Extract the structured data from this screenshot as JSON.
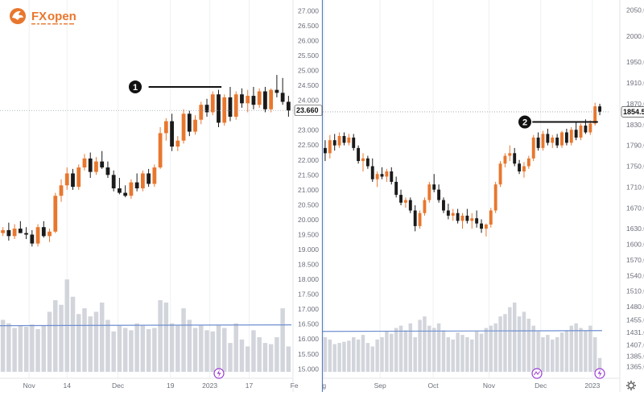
{
  "brand": {
    "name": "FXopen",
    "name_part1": "FX",
    "name_part2": "open",
    "icon": "fxopen-dragon-logo-icon"
  },
  "colors": {
    "up": "#e8772e",
    "down": "#1a1a1a",
    "volume": "#d3d5dc",
    "volume_ma": "#6f8fd0",
    "grid": "#eef0f3",
    "axis_text": "#6b6f7a",
    "separator": "#5b7bbf",
    "marker": "#111111"
  },
  "chart_data": [
    {
      "type": "candlestick",
      "title": "",
      "x_ticks": [
        "Nov",
        "14",
        "Dec",
        "19",
        "2023",
        "17",
        "Fe"
      ],
      "y_axis": {
        "ticks": [
          "27.000",
          "26.500",
          "26.000",
          "25.500",
          "25.000",
          "24.500",
          "24.000",
          "23.500",
          "23.000",
          "22.500",
          "22.000",
          "21.500",
          "21.000",
          "20.500",
          "20.000",
          "19.500",
          "19.000",
          "18.500",
          "18.000",
          "17.500",
          "17.000",
          "16.500",
          "16.000",
          "15.500",
          "15.000"
        ],
        "range": [
          14.9,
          27.2
        ]
      },
      "last_price_label": "23.660",
      "last_price": 23.66,
      "annotation": {
        "label": "1",
        "level": 24.45,
        "type": "horizontal-resistance-line"
      },
      "candles": [
        {
          "o": 19.55,
          "h": 19.75,
          "l": 19.45,
          "c": 19.65
        },
        {
          "o": 19.65,
          "h": 19.9,
          "l": 19.3,
          "c": 19.45
        },
        {
          "o": 19.45,
          "h": 19.85,
          "l": 19.35,
          "c": 19.7
        },
        {
          "o": 19.7,
          "h": 19.95,
          "l": 19.55,
          "c": 19.55
        },
        {
          "o": 19.55,
          "h": 19.75,
          "l": 19.35,
          "c": 19.5
        },
        {
          "o": 19.5,
          "h": 19.65,
          "l": 19.1,
          "c": 19.2
        },
        {
          "o": 19.2,
          "h": 19.85,
          "l": 19.1,
          "c": 19.75
        },
        {
          "o": 19.75,
          "h": 19.95,
          "l": 19.4,
          "c": 19.45
        },
        {
          "o": 19.45,
          "h": 19.7,
          "l": 19.25,
          "c": 19.6
        },
        {
          "o": 19.6,
          "h": 20.9,
          "l": 19.55,
          "c": 20.8
        },
        {
          "o": 20.8,
          "h": 21.35,
          "l": 20.6,
          "c": 21.15
        },
        {
          "o": 21.15,
          "h": 21.75,
          "l": 21.0,
          "c": 21.55
        },
        {
          "o": 21.55,
          "h": 21.7,
          "l": 21.0,
          "c": 21.1
        },
        {
          "o": 21.1,
          "h": 21.85,
          "l": 21.0,
          "c": 21.75
        },
        {
          "o": 21.75,
          "h": 22.2,
          "l": 21.65,
          "c": 22.05
        },
        {
          "o": 22.05,
          "h": 22.25,
          "l": 21.4,
          "c": 21.6
        },
        {
          "o": 21.6,
          "h": 22.1,
          "l": 21.5,
          "c": 21.95
        },
        {
          "o": 21.95,
          "h": 22.3,
          "l": 21.7,
          "c": 21.75
        },
        {
          "o": 21.75,
          "h": 21.95,
          "l": 21.4,
          "c": 21.5
        },
        {
          "o": 21.5,
          "h": 21.65,
          "l": 20.95,
          "c": 21.05
        },
        {
          "o": 21.05,
          "h": 21.4,
          "l": 20.85,
          "c": 20.9
        },
        {
          "o": 20.9,
          "h": 21.15,
          "l": 20.75,
          "c": 20.8
        },
        {
          "o": 20.8,
          "h": 21.35,
          "l": 20.7,
          "c": 21.25
        },
        {
          "o": 21.25,
          "h": 21.55,
          "l": 20.95,
          "c": 21.05
        },
        {
          "o": 21.05,
          "h": 21.65,
          "l": 20.95,
          "c": 21.55
        },
        {
          "o": 21.55,
          "h": 21.7,
          "l": 21.1,
          "c": 21.2
        },
        {
          "o": 21.2,
          "h": 21.85,
          "l": 21.1,
          "c": 21.75
        },
        {
          "o": 21.75,
          "h": 23.1,
          "l": 21.7,
          "c": 22.9
        },
        {
          "o": 22.9,
          "h": 23.4,
          "l": 22.65,
          "c": 23.3
        },
        {
          "o": 23.3,
          "h": 23.55,
          "l": 22.3,
          "c": 22.45
        },
        {
          "o": 22.45,
          "h": 22.8,
          "l": 22.3,
          "c": 22.65
        },
        {
          "o": 22.65,
          "h": 23.7,
          "l": 22.55,
          "c": 23.55
        },
        {
          "o": 23.55,
          "h": 23.65,
          "l": 22.8,
          "c": 22.95
        },
        {
          "o": 22.95,
          "h": 23.5,
          "l": 22.85,
          "c": 23.35
        },
        {
          "o": 23.35,
          "h": 23.95,
          "l": 23.2,
          "c": 23.85
        },
        {
          "o": 23.85,
          "h": 24.05,
          "l": 23.45,
          "c": 23.6
        },
        {
          "o": 23.6,
          "h": 24.3,
          "l": 23.5,
          "c": 24.2
        },
        {
          "o": 24.2,
          "h": 24.35,
          "l": 23.1,
          "c": 23.25
        },
        {
          "o": 23.25,
          "h": 24.2,
          "l": 23.15,
          "c": 24.1
        },
        {
          "o": 24.1,
          "h": 24.45,
          "l": 23.3,
          "c": 23.45
        },
        {
          "o": 23.45,
          "h": 24.3,
          "l": 23.35,
          "c": 24.2
        },
        {
          "o": 24.2,
          "h": 24.4,
          "l": 23.75,
          "c": 23.9
        },
        {
          "o": 23.9,
          "h": 24.35,
          "l": 23.6,
          "c": 24.15
        },
        {
          "o": 24.15,
          "h": 24.45,
          "l": 23.7,
          "c": 23.85
        },
        {
          "o": 23.85,
          "h": 24.4,
          "l": 23.75,
          "c": 24.3
        },
        {
          "o": 24.3,
          "h": 24.45,
          "l": 23.6,
          "c": 23.7
        },
        {
          "o": 23.7,
          "h": 24.4,
          "l": 23.6,
          "c": 24.35
        },
        {
          "o": 24.35,
          "h": 24.85,
          "l": 24.1,
          "c": 24.25
        },
        {
          "o": 24.25,
          "h": 24.75,
          "l": 23.85,
          "c": 23.95
        },
        {
          "o": 23.95,
          "h": 24.15,
          "l": 23.45,
          "c": 23.66
        }
      ],
      "volume": [
        0.45,
        0.42,
        0.38,
        0.4,
        0.39,
        0.41,
        0.37,
        0.4,
        0.52,
        0.62,
        0.58,
        0.8,
        0.65,
        0.5,
        0.55,
        0.48,
        0.52,
        0.6,
        0.45,
        0.35,
        0.4,
        0.38,
        0.36,
        0.42,
        0.4,
        0.37,
        0.38,
        0.62,
        0.6,
        0.42,
        0.4,
        0.55,
        0.45,
        0.38,
        0.4,
        0.36,
        0.35,
        0.4,
        0.38,
        0.25,
        0.42,
        0.28,
        0.22,
        0.36,
        0.3,
        0.25,
        0.24,
        0.3,
        0.55,
        0.22
      ],
      "volume_ma": 0.4
    },
    {
      "type": "candlestick",
      "title": "",
      "x_ticks": [
        "g",
        "Sep",
        "Oct",
        "Nov",
        "Dec",
        "2023"
      ],
      "y_axis": {
        "ticks": [
          "2050.0",
          "2000.0",
          "1950.0",
          "1910.0",
          "1870.0",
          "1830.0",
          "1790.0",
          "1750.0",
          "1710.0",
          "1670.0",
          "1630.0",
          "1600.0",
          "1570.0",
          "1540.0",
          "1510.0",
          "1480.0",
          "1455.0",
          "1431.0",
          "1407.0",
          "1385.0",
          "1365.0"
        ],
        "range": [
          1355.0,
          2060.0
        ]
      },
      "last_price_label": "1854.5",
      "last_price": 1854.5,
      "annotation": {
        "label": "2",
        "level": 1835.0,
        "type": "horizontal-resistance-line"
      },
      "candles": [
        {
          "o": 1785,
          "h": 1800,
          "l": 1760,
          "c": 1775
        },
        {
          "o": 1775,
          "h": 1810,
          "l": 1765,
          "c": 1800
        },
        {
          "o": 1800,
          "h": 1812,
          "l": 1780,
          "c": 1790
        },
        {
          "o": 1790,
          "h": 1815,
          "l": 1785,
          "c": 1808
        },
        {
          "o": 1808,
          "h": 1815,
          "l": 1790,
          "c": 1795
        },
        {
          "o": 1795,
          "h": 1812,
          "l": 1790,
          "c": 1805
        },
        {
          "o": 1805,
          "h": 1812,
          "l": 1780,
          "c": 1785
        },
        {
          "o": 1785,
          "h": 1790,
          "l": 1755,
          "c": 1760
        },
        {
          "o": 1760,
          "h": 1775,
          "l": 1740,
          "c": 1765
        },
        {
          "o": 1765,
          "h": 1770,
          "l": 1745,
          "c": 1750
        },
        {
          "o": 1750,
          "h": 1765,
          "l": 1720,
          "c": 1725
        },
        {
          "o": 1725,
          "h": 1740,
          "l": 1710,
          "c": 1735
        },
        {
          "o": 1735,
          "h": 1748,
          "l": 1725,
          "c": 1730
        },
        {
          "o": 1730,
          "h": 1745,
          "l": 1720,
          "c": 1740
        },
        {
          "o": 1740,
          "h": 1748,
          "l": 1715,
          "c": 1720
        },
        {
          "o": 1720,
          "h": 1730,
          "l": 1690,
          "c": 1695
        },
        {
          "o": 1695,
          "h": 1705,
          "l": 1675,
          "c": 1680
        },
        {
          "o": 1680,
          "h": 1690,
          "l": 1670,
          "c": 1685
        },
        {
          "o": 1685,
          "h": 1690,
          "l": 1660,
          "c": 1665
        },
        {
          "o": 1665,
          "h": 1675,
          "l": 1625,
          "c": 1635
        },
        {
          "o": 1635,
          "h": 1665,
          "l": 1630,
          "c": 1660
        },
        {
          "o": 1660,
          "h": 1690,
          "l": 1655,
          "c": 1685
        },
        {
          "o": 1685,
          "h": 1720,
          "l": 1680,
          "c": 1715
        },
        {
          "o": 1715,
          "h": 1735,
          "l": 1700,
          "c": 1705
        },
        {
          "o": 1705,
          "h": 1715,
          "l": 1680,
          "c": 1685
        },
        {
          "o": 1685,
          "h": 1690,
          "l": 1660,
          "c": 1665
        },
        {
          "o": 1665,
          "h": 1678,
          "l": 1648,
          "c": 1655
        },
        {
          "o": 1655,
          "h": 1668,
          "l": 1645,
          "c": 1660
        },
        {
          "o": 1660,
          "h": 1668,
          "l": 1640,
          "c": 1645
        },
        {
          "o": 1645,
          "h": 1660,
          "l": 1630,
          "c": 1655
        },
        {
          "o": 1655,
          "h": 1668,
          "l": 1640,
          "c": 1645
        },
        {
          "o": 1645,
          "h": 1660,
          "l": 1630,
          "c": 1650
        },
        {
          "o": 1650,
          "h": 1665,
          "l": 1632,
          "c": 1640
        },
        {
          "o": 1640,
          "h": 1648,
          "l": 1622,
          "c": 1630
        },
        {
          "o": 1630,
          "h": 1640,
          "l": 1615,
          "c": 1638
        },
        {
          "o": 1638,
          "h": 1670,
          "l": 1632,
          "c": 1665
        },
        {
          "o": 1665,
          "h": 1720,
          "l": 1660,
          "c": 1715
        },
        {
          "o": 1715,
          "h": 1760,
          "l": 1710,
          "c": 1755
        },
        {
          "o": 1755,
          "h": 1775,
          "l": 1748,
          "c": 1770
        },
        {
          "o": 1770,
          "h": 1790,
          "l": 1760,
          "c": 1775
        },
        {
          "o": 1775,
          "h": 1785,
          "l": 1750,
          "c": 1755
        },
        {
          "o": 1755,
          "h": 1762,
          "l": 1735,
          "c": 1740
        },
        {
          "o": 1740,
          "h": 1758,
          "l": 1728,
          "c": 1750
        },
        {
          "o": 1750,
          "h": 1770,
          "l": 1745,
          "c": 1765
        },
        {
          "o": 1765,
          "h": 1810,
          "l": 1760,
          "c": 1805
        },
        {
          "o": 1805,
          "h": 1815,
          "l": 1780,
          "c": 1785
        },
        {
          "o": 1785,
          "h": 1818,
          "l": 1780,
          "c": 1812
        },
        {
          "o": 1812,
          "h": 1822,
          "l": 1790,
          "c": 1795
        },
        {
          "o": 1795,
          "h": 1810,
          "l": 1785,
          "c": 1805
        },
        {
          "o": 1805,
          "h": 1812,
          "l": 1785,
          "c": 1790
        },
        {
          "o": 1790,
          "h": 1818,
          "l": 1785,
          "c": 1815
        },
        {
          "o": 1815,
          "h": 1822,
          "l": 1790,
          "c": 1795
        },
        {
          "o": 1795,
          "h": 1825,
          "l": 1790,
          "c": 1820
        },
        {
          "o": 1820,
          "h": 1835,
          "l": 1800,
          "c": 1805
        },
        {
          "o": 1805,
          "h": 1832,
          "l": 1800,
          "c": 1828
        },
        {
          "o": 1828,
          "h": 1840,
          "l": 1812,
          "c": 1815
        },
        {
          "o": 1815,
          "h": 1838,
          "l": 1810,
          "c": 1832
        },
        {
          "o": 1832,
          "h": 1872,
          "l": 1828,
          "c": 1865
        },
        {
          "o": 1865,
          "h": 1870,
          "l": 1848,
          "c": 1854.5
        }
      ],
      "volume": [
        0.3,
        0.28,
        0.24,
        0.25,
        0.26,
        0.27,
        0.3,
        0.28,
        0.32,
        0.25,
        0.22,
        0.28,
        0.3,
        0.35,
        0.33,
        0.38,
        0.4,
        0.36,
        0.42,
        0.3,
        0.45,
        0.48,
        0.4,
        0.38,
        0.42,
        0.36,
        0.3,
        0.28,
        0.34,
        0.32,
        0.3,
        0.28,
        0.35,
        0.33,
        0.38,
        0.4,
        0.42,
        0.48,
        0.5,
        0.56,
        0.6,
        0.48,
        0.52,
        0.46,
        0.4,
        0.35,
        0.3,
        0.32,
        0.28,
        0.3,
        0.34,
        0.36,
        0.4,
        0.42,
        0.38,
        0.36,
        0.4,
        0.3,
        0.12
      ],
      "volume_ma": 0.35
    }
  ]
}
